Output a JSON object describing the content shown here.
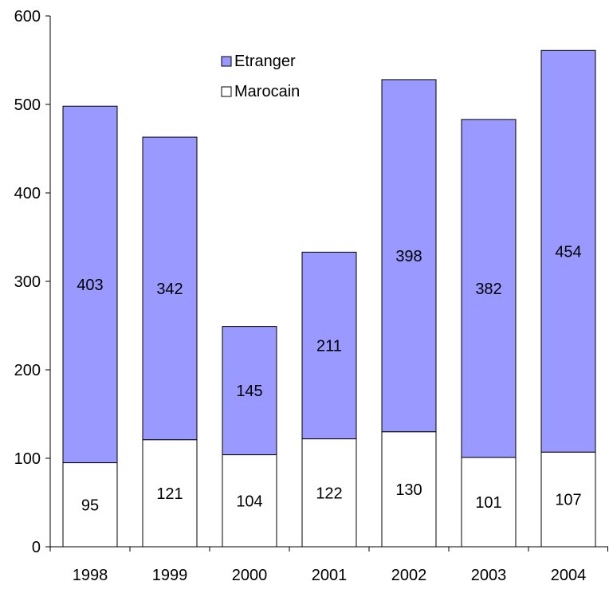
{
  "chart_data": {
    "type": "bar",
    "stacked": true,
    "categories": [
      "1998",
      "1999",
      "2000",
      "2001",
      "2002",
      "2003",
      "2004"
    ],
    "series": [
      {
        "name": "Marocain",
        "values": [
          95,
          121,
          104,
          122,
          130,
          101,
          107
        ],
        "color": "#ffffff"
      },
      {
        "name": "Etranger",
        "values": [
          403,
          342,
          145,
          211,
          398,
          382,
          454
        ],
        "color": "#9999ff"
      }
    ],
    "ylim": [
      0,
      600
    ],
    "yticks": [
      0,
      100,
      200,
      300,
      400,
      500,
      600
    ],
    "grid": false,
    "legend": {
      "placement": "top-center",
      "order": [
        "Etranger",
        "Marocain"
      ]
    },
    "data_labels": true
  }
}
